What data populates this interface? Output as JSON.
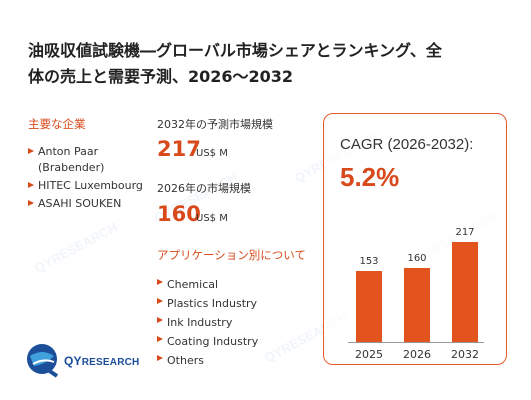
{
  "title_line1": "油吸収値試験機―グローバル市場シェアとランキング、全",
  "title_line2": "体の売上と需要予測、2026～2032",
  "left_heading": "主要な企業",
  "companies": [
    "Anton Paar (Brabender)",
    "HITEC Luxembourg",
    "ASAHI SOUKEN"
  ],
  "market_2032_label": "2032年の予測市場規模",
  "market_2032_value": "217",
  "market_2032_unit": "US$ M",
  "market_2026_label": "2026年の市場規模",
  "market_2026_value": "160",
  "market_2026_unit": "US$ M",
  "apps_heading": "アプリケーション別について",
  "applications": [
    "Chemical",
    "Plastics Industry",
    "Ink Industry",
    "Coating Industry",
    "Others"
  ],
  "cagr_label": "CAGR (2026-2032):",
  "cagr_value": "5.2%",
  "chart_data": {
    "type": "bar",
    "categories": [
      "2025",
      "2026",
      "2032"
    ],
    "values": [
      153,
      160,
      217
    ]
  },
  "logo_text_q": "QY",
  "logo_text_rest": "RESEARCH",
  "colors": {
    "accent": "#d84a1b",
    "bar": "#e2531d",
    "logo": "#1c4e9a"
  }
}
